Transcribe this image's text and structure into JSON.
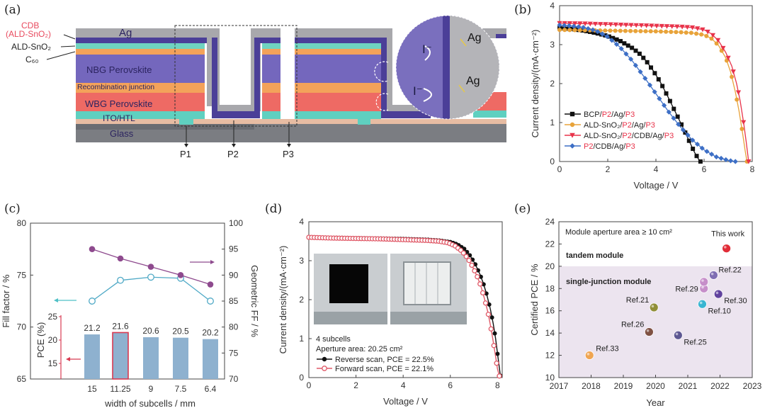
{
  "figure": {
    "panel_labels": [
      "(a)",
      "(b)",
      "(c)",
      "(d)",
      "(e)"
    ]
  },
  "diagram_a": {
    "layers": [
      {
        "name": "Ag",
        "color": "#a8a8ac"
      },
      {
        "name": "CDB (ALD-SnO2)",
        "color": "#4b3f98"
      },
      {
        "name": "ALD-SnO2",
        "color": "#6fd3c0"
      },
      {
        "name": "C60",
        "color": "#f3a25a"
      },
      {
        "name": "NBG Perovskite",
        "color": "#7467bd"
      },
      {
        "name": "Recombination junction",
        "color": "#f3a25a"
      },
      {
        "name": "WBG Perovskite",
        "color": "#ee6a64"
      },
      {
        "name": "ITO/HTL",
        "color": "#5fd0c0"
      },
      {
        "name": "Glass",
        "color": "#7b7d82"
      }
    ],
    "callouts": {
      "cdb_line1": "CDB",
      "cdb_line2": "(ALD-SnO₂)",
      "ald": "ALD-SnO₂",
      "c60": "C₆₀"
    },
    "texts": {
      "ag": "Ag",
      "nbg": "NBG Perovskite",
      "recomb": "Recombination junction",
      "wbg": "WBG Perovskite",
      "ito": "ITO/HTL",
      "glass": "Glass"
    },
    "scribes": [
      "P1",
      "P2",
      "P3"
    ],
    "inset": {
      "ion1": "I⁻",
      "ion2": "I⁻",
      "ag1": "Ag",
      "ag2": "Ag"
    }
  },
  "chart_data": [
    {
      "panel": "b",
      "type": "line",
      "title": "",
      "xlabel": "Voltage / V",
      "ylabel": "Current density/(mA·cm⁻²)",
      "xlim": [
        0,
        8
      ],
      "ylim": [
        0,
        4
      ],
      "xticks": [
        0,
        2,
        4,
        6,
        8
      ],
      "yticks": [
        0,
        1,
        2,
        3,
        4
      ],
      "legend_position": "bottom-left",
      "series": [
        {
          "name": "BCP/P2/Ag/P3",
          "legend_parts": [
            [
              "BCP/",
              "#222"
            ],
            [
              "P2",
              "#e8334a"
            ],
            [
              "/Ag/",
              "#222"
            ],
            [
              "P3",
              "#e8334a"
            ]
          ],
          "color": "#111111",
          "marker": "square",
          "x": [
            0,
            0.5,
            1.0,
            1.5,
            2.0,
            2.5,
            3.0,
            3.3,
            3.6,
            3.9,
            4.2,
            4.5,
            4.8,
            5.1,
            5.4,
            5.6,
            5.75,
            5.85
          ],
          "y": [
            3.42,
            3.4,
            3.36,
            3.3,
            3.22,
            3.1,
            2.92,
            2.78,
            2.58,
            2.32,
            2.02,
            1.66,
            1.28,
            0.9,
            0.5,
            0.24,
            0.08,
            0
          ]
        },
        {
          "name": "ALD-SnO2/P2/Ag/P3",
          "legend_parts": [
            [
              "ALD-SnO₂/",
              "#222"
            ],
            [
              "P2",
              "#e8334a"
            ],
            [
              "/Ag/",
              "#222"
            ],
            [
              "P3",
              "#e8334a"
            ]
          ],
          "color": "#e8a33a",
          "marker": "circle",
          "x": [
            0,
            1,
            2,
            3,
            4,
            5,
            5.5,
            6.0,
            6.3,
            6.6,
            6.9,
            7.1,
            7.3,
            7.45,
            7.6,
            7.7,
            7.78
          ],
          "y": [
            3.38,
            3.37,
            3.36,
            3.35,
            3.34,
            3.32,
            3.3,
            3.25,
            3.16,
            2.98,
            2.66,
            2.3,
            1.78,
            1.3,
            0.72,
            0.3,
            0
          ]
        },
        {
          "name": "ALD-SnO2/P2/CDB/Ag/P3",
          "legend_parts": [
            [
              "ALD-SnO₂/",
              "#222"
            ],
            [
              "P2",
              "#e8334a"
            ],
            [
              "/CDB/Ag/",
              "#222"
            ],
            [
              "P3",
              "#e8334a"
            ]
          ],
          "color": "#e8334a",
          "marker": "triangle-down",
          "x": [
            0,
            1,
            2,
            3,
            4,
            5,
            5.5,
            6.0,
            6.3,
            6.6,
            6.9,
            7.15,
            7.35,
            7.5,
            7.65,
            7.75,
            7.85
          ],
          "y": [
            3.55,
            3.54,
            3.52,
            3.5,
            3.48,
            3.46,
            3.44,
            3.38,
            3.28,
            3.1,
            2.8,
            2.45,
            2.0,
            1.55,
            0.96,
            0.5,
            0
          ]
        },
        {
          "name": "P2/CDB/Ag/P3",
          "legend_parts": [
            [
              "P2",
              "#e8334a"
            ],
            [
              "/CDB/Ag/",
              "#222"
            ],
            [
              "P3",
              "#e8334a"
            ]
          ],
          "color": "#3d6fc6",
          "marker": "diamond",
          "x": [
            0,
            0.5,
            1.0,
            1.5,
            2.0,
            2.5,
            3.0,
            3.5,
            4.0,
            4.5,
            5.0,
            5.5,
            6.0,
            6.5,
            7.0,
            7.3
          ],
          "y": [
            3.5,
            3.48,
            3.44,
            3.36,
            3.2,
            2.94,
            2.6,
            2.18,
            1.74,
            1.3,
            0.9,
            0.56,
            0.3,
            0.12,
            0.03,
            0
          ]
        }
      ]
    },
    {
      "panel": "c",
      "type": "line+bar",
      "xlabel": "width of subcells / mm",
      "ylabel_left": "Fill factor / %",
      "ylabel_right": "Geometric FF / %",
      "ylabel_inner": "PCE (%)",
      "categories": [
        "15",
        "11.25",
        "9",
        "7.5",
        "6.4"
      ],
      "ylim_left": [
        65,
        80
      ],
      "yticks_left": [
        65,
        70,
        75,
        80
      ],
      "ylim_right": [
        70,
        100
      ],
      "yticks_right": [
        70,
        75,
        80,
        85,
        90,
        95,
        100
      ],
      "ylim_inner": [
        15,
        25
      ],
      "yticks_inner": [
        15,
        20,
        25
      ],
      "series": [
        {
          "name": "Fill factor",
          "axis": "left",
          "color": "#4fa9c6",
          "marker": "open-circle",
          "values": [
            72.5,
            74.5,
            74.8,
            74.7,
            72.5
          ]
        },
        {
          "name": "Geometric FF",
          "axis": "right",
          "color": "#8e4a8e",
          "marker": "filled-circle",
          "values": [
            95.0,
            93.2,
            91.6,
            90.0,
            88.2
          ]
        },
        {
          "name": "PCE",
          "axis": "inner",
          "type": "bar",
          "color": "#8eb1cf",
          "highlight_index": 1,
          "highlight_color": "#d83a52",
          "values": [
            21.2,
            21.6,
            20.6,
            20.5,
            20.2
          ],
          "data_labels": [
            "21.2",
            "21.6",
            "20.6",
            "20.5",
            "20.2"
          ]
        }
      ]
    },
    {
      "panel": "d",
      "type": "line",
      "xlabel": "Voltage / V",
      "ylabel": "Current density/(mA·cm⁻²)",
      "xlim": [
        0,
        8.2
      ],
      "ylim": [
        0,
        4
      ],
      "xticks": [
        0,
        2,
        4,
        6,
        8
      ],
      "yticks": [
        0,
        1,
        2,
        3,
        4
      ],
      "annotations": [
        "4 subcells",
        "Aperture area: 20.25 cm²"
      ],
      "legend_position": "bottom-left",
      "series": [
        {
          "name": "Reverse scan, PCE = 22.5%",
          "color": "#111111",
          "marker": "filled-circle",
          "x": [
            0,
            1,
            2,
            3,
            4,
            5,
            5.5,
            6.0,
            6.3,
            6.6,
            6.85,
            7.05,
            7.25,
            7.4,
            7.55,
            7.7,
            7.82,
            7.92,
            8.0,
            8.08,
            8.12
          ],
          "y": [
            3.6,
            3.59,
            3.58,
            3.57,
            3.56,
            3.54,
            3.52,
            3.48,
            3.42,
            3.3,
            3.12,
            2.92,
            2.66,
            2.42,
            2.12,
            1.75,
            1.38,
            1.0,
            0.62,
            0.25,
            0.05
          ]
        },
        {
          "name": "Forward scan, PCE = 22.1%",
          "color": "#e05a68",
          "marker": "open-circle",
          "x": [
            0,
            1,
            2,
            3,
            4,
            5,
            5.5,
            5.9,
            6.2,
            6.5,
            6.75,
            6.95,
            7.15,
            7.3,
            7.45,
            7.6,
            7.72,
            7.82,
            7.92,
            8.0,
            8.08
          ],
          "y": [
            3.6,
            3.58,
            3.57,
            3.56,
            3.54,
            3.52,
            3.5,
            3.46,
            3.38,
            3.24,
            3.05,
            2.84,
            2.58,
            2.34,
            2.02,
            1.66,
            1.28,
            0.92,
            0.54,
            0.22,
            0.04
          ]
        }
      ],
      "inset_photos": 2
    },
    {
      "panel": "e",
      "type": "scatter",
      "xlabel": "Year",
      "ylabel": "Certified PCE / %",
      "xlim": [
        2017,
        2023
      ],
      "ylim": [
        10,
        24
      ],
      "xticks": [
        2017,
        2018,
        2019,
        2020,
        2021,
        2022,
        2023
      ],
      "yticks": [
        10,
        12,
        14,
        16,
        18,
        20,
        22,
        24
      ],
      "header_text": "Module aperture area ≥ 10 cm²",
      "regions": [
        {
          "label": "tandem module",
          "y_range": [
            20,
            24
          ],
          "color": "#ffffff"
        },
        {
          "label": "single-junction module",
          "y_range": [
            10,
            20
          ],
          "color": "#ece4ef"
        }
      ],
      "points": [
        {
          "label": "Ref.33",
          "x": 2017.95,
          "y": 12.0,
          "color": "#f0a24a",
          "label_color": "#f0b070",
          "label_pos": "upper-right"
        },
        {
          "label": "Ref.26",
          "x": 2019.8,
          "y": 14.1,
          "color": "#7a4a3a",
          "label_color": "#6b5a55",
          "label_pos": "upper-left"
        },
        {
          "label": "Ref.21",
          "x": 2019.95,
          "y": 16.3,
          "color": "#8c8a2e",
          "label_color": "#6b5a55",
          "label_pos": "upper-left"
        },
        {
          "label": "Ref.25",
          "x": 2020.7,
          "y": 13.8,
          "color": "#56508e",
          "label_color": "#56508e",
          "label_pos": "lower-right"
        },
        {
          "label": "Ref.10",
          "x": 2021.45,
          "y": 16.6,
          "color": "#2fb3d0",
          "label_color": "#6fb8d6",
          "label_pos": "lower-right"
        },
        {
          "label": "Ref.29",
          "x": 2021.5,
          "y": 18.0,
          "color": "#c48ac8",
          "label_color": "#c48ac8",
          "label_pos": "left"
        },
        {
          "label": "",
          "x": 2021.5,
          "y": 18.6,
          "color": "#c48ac8",
          "label_color": "#c48ac8",
          "label_pos": "none"
        },
        {
          "label": "Ref.22",
          "x": 2021.8,
          "y": 19.2,
          "color": "#7a68b0",
          "label_color": "#9a8ac0",
          "label_pos": "right"
        },
        {
          "label": "Ref.30",
          "x": 2021.95,
          "y": 17.5,
          "color": "#5a3a9a",
          "label_color": "#5a3a9a",
          "label_pos": "lower-right"
        },
        {
          "label": "This work",
          "x": 2022.2,
          "y": 21.6,
          "color": "#e0222e",
          "label_color": "#222222",
          "label_pos": "above"
        }
      ]
    }
  ]
}
